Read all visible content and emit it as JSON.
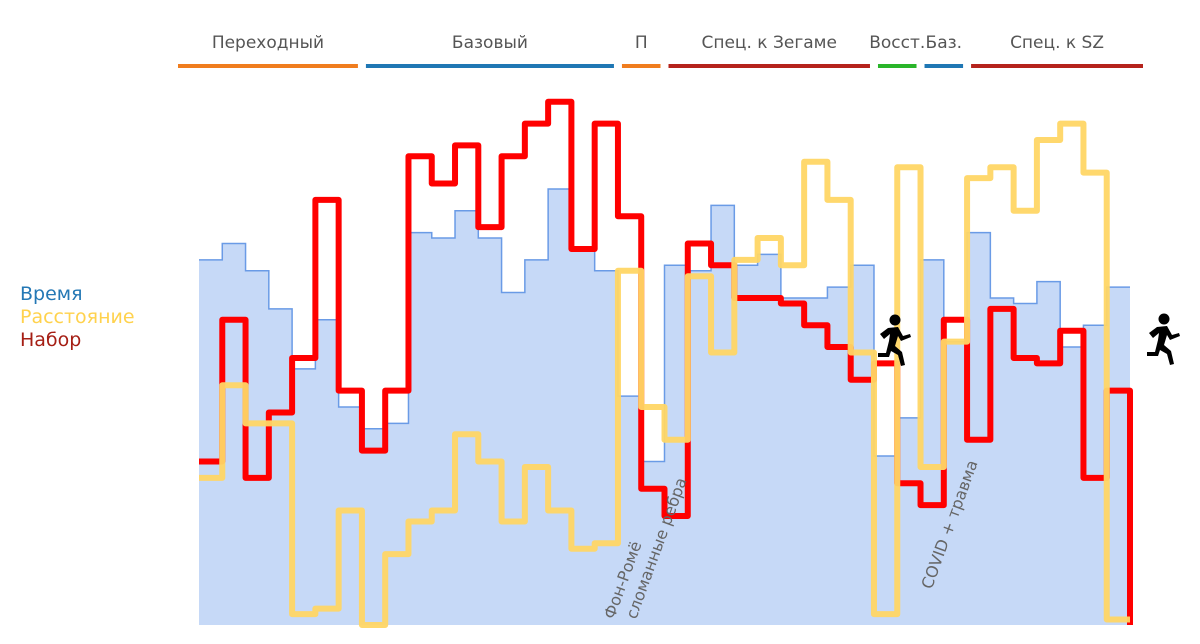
{
  "chart_data": {
    "type": "line",
    "subtype": "step",
    "title": "",
    "xlabel": "",
    "ylabel": "",
    "ylim": [
      0,
      100
    ],
    "x": [
      0,
      1,
      2,
      3,
      4,
      5,
      6,
      7,
      8,
      9,
      10,
      11,
      12,
      13,
      14,
      15,
      16,
      17,
      18,
      19,
      20,
      21,
      22,
      23,
      24,
      25,
      26,
      27,
      28,
      29,
      30,
      31,
      32,
      33,
      34,
      35,
      36,
      37,
      38,
      39
    ],
    "grid": false,
    "legend_position": "left",
    "series": [
      {
        "name": "Время",
        "key": "time",
        "color": "#6a9be6",
        "fill": "#c6d9f7",
        "style": "area-step",
        "values": [
          67,
          70,
          65,
          58,
          47,
          56,
          40,
          36,
          37,
          72,
          71,
          76,
          71,
          61,
          67,
          80,
          69,
          65,
          42,
          30,
          66,
          65,
          77,
          66,
          68,
          60,
          60,
          62,
          66,
          31,
          38,
          67,
          52,
          72,
          60,
          59,
          63,
          51,
          55,
          62
        ]
      },
      {
        "name": "Расстояние",
        "key": "distance",
        "color": "#ffd665",
        "style": "step",
        "values": [
          27,
          44,
          37,
          37,
          2,
          3,
          21,
          0,
          13,
          19,
          21,
          35,
          30,
          19,
          29,
          21,
          14,
          15,
          65,
          40,
          34,
          64,
          50,
          67,
          71,
          66,
          85,
          78,
          50,
          2,
          84,
          29,
          52,
          82,
          84,
          76,
          89,
          92,
          83,
          1
        ]
      },
      {
        "name": "Набор",
        "key": "gain",
        "color": "#ff0000",
        "style": "step",
        "values": [
          30,
          56,
          27,
          39,
          49,
          78,
          43,
          32,
          43,
          86,
          81,
          88,
          73,
          86,
          92,
          96,
          69,
          92,
          75,
          25,
          20,
          70,
          66,
          60,
          60,
          59,
          55,
          51,
          45,
          48,
          26,
          22,
          56,
          34,
          58,
          49,
          48,
          54,
          27,
          43
        ]
      }
    ],
    "phases": [
      {
        "label": "Переходный",
        "start": 0,
        "end": 6,
        "color": "#f07d1e"
      },
      {
        "label": "Базовый",
        "start": 7,
        "end": 17,
        "color": "#1f77b4"
      },
      {
        "label": "П",
        "start": 18,
        "end": 19,
        "color": "#f07d1e"
      },
      {
        "label": "Спец. к Зегаме",
        "start": 20,
        "end": 28,
        "color": "#b5231c"
      },
      {
        "label": "Восст.",
        "start": 29,
        "end": 30,
        "color": "#2ab52a"
      },
      {
        "label": "Баз.",
        "start": 31,
        "end": 32,
        "color": "#1f77b4"
      },
      {
        "label": "Спец. к SZ",
        "start": 33,
        "end": 39,
        "color": "#b5231c"
      }
    ],
    "annotations": [
      {
        "lines": [
          "Фон-Ромё",
          "сломанные ребра"
        ],
        "at": 18
      },
      {
        "lines": [
          "COVID + травма"
        ],
        "at": 31
      }
    ],
    "markers": [
      {
        "icon": "running-person-icon",
        "at": 29
      },
      {
        "icon": "running-person-icon",
        "at": 40
      }
    ]
  },
  "legend": {
    "time": {
      "label": "Время",
      "color": "#2478b5"
    },
    "distance": {
      "label": "Расстояние",
      "color": "#ffd24d"
    },
    "gain": {
      "label": "Набор",
      "color": "#a51e14"
    }
  }
}
